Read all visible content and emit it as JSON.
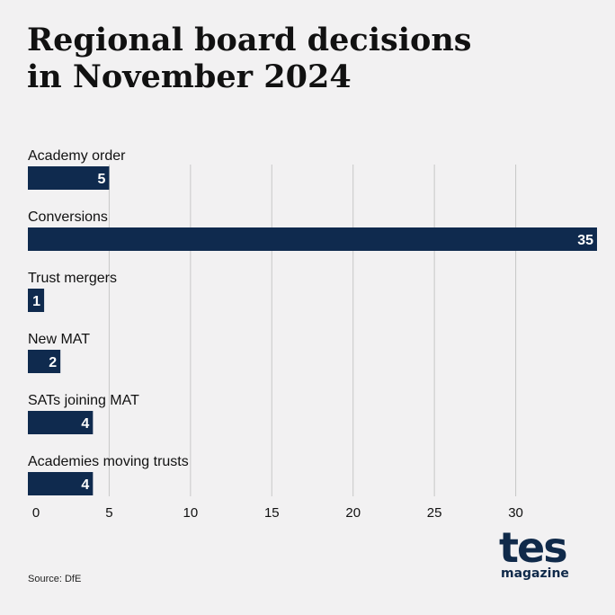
{
  "title_line1": "Regional board decisions",
  "title_line2": "in November 2024",
  "source": "Source: DfE",
  "logo": {
    "main": "tes",
    "sub": "magazine"
  },
  "colors": {
    "bar": "#0f2a4e",
    "grid": "#c8c8c8",
    "label": "#111111",
    "value_text": "#ffffff",
    "background": "#f2f1f2"
  },
  "chart_data": {
    "type": "bar",
    "orientation": "horizontal",
    "categories": [
      "Academy order",
      "Conversions",
      "Trust mergers",
      "New MAT",
      "SATs joining MAT",
      "Academies moving trusts"
    ],
    "values": [
      5,
      35,
      1,
      2,
      4,
      4
    ],
    "x_ticks": [
      0,
      5,
      10,
      15,
      20,
      25,
      30
    ],
    "xlim": [
      0,
      35
    ],
    "grid": true,
    "legend": false
  }
}
